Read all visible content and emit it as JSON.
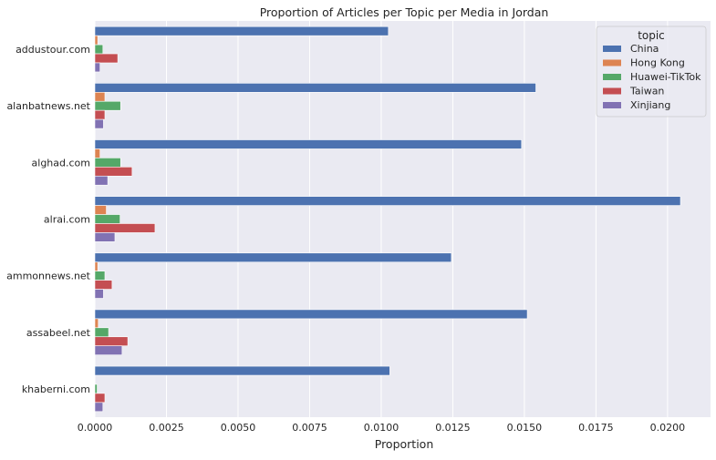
{
  "chart_data": {
    "type": "bar",
    "orientation": "horizontal",
    "title": "Proportion of Articles per Topic per Media in Jordan",
    "xlabel": "Proportion",
    "ylabel": "",
    "xlim": [
      0,
      0.0215
    ],
    "xticks": [
      "0.0000",
      "0.0025",
      "0.0050",
      "0.0075",
      "0.0100",
      "0.0125",
      "0.0150",
      "0.0175",
      "0.0200"
    ],
    "xtick_values": [
      0,
      0.0025,
      0.005,
      0.0075,
      0.01,
      0.0125,
      0.015,
      0.0175,
      0.02
    ],
    "grid": true,
    "legend_title": "topic",
    "legend_position": "top-right",
    "categories": [
      "addustour.com",
      "alanbatnews.net",
      "alghad.com",
      "alrai.com",
      "ammonnews.net",
      "assabeel.net",
      "khaberni.com"
    ],
    "series": [
      {
        "name": "China",
        "color": "#4c72b0",
        "values": [
          0.01025,
          0.0154,
          0.0149,
          0.02045,
          0.01245,
          0.0151,
          0.0103
        ]
      },
      {
        "name": "Hong Kong",
        "color": "#dd8452",
        "values": [
          0.0001,
          0.00035,
          0.00018,
          0.0004,
          0.0001,
          0.00012,
          0.0
        ]
      },
      {
        "name": "Huawei-TikTok",
        "color": "#55a868",
        "values": [
          0.00028,
          0.0009,
          0.0009,
          0.00088,
          0.00035,
          0.00048,
          8e-05
        ]
      },
      {
        "name": "Taiwan",
        "color": "#c44e52",
        "values": [
          0.0008,
          0.00035,
          0.0013,
          0.0021,
          0.0006,
          0.00115,
          0.00035
        ]
      },
      {
        "name": "Xinjiang",
        "color": "#8172b3",
        "values": [
          0.00018,
          0.0003,
          0.00045,
          0.0007,
          0.0003,
          0.00095,
          0.00028
        ]
      }
    ]
  }
}
